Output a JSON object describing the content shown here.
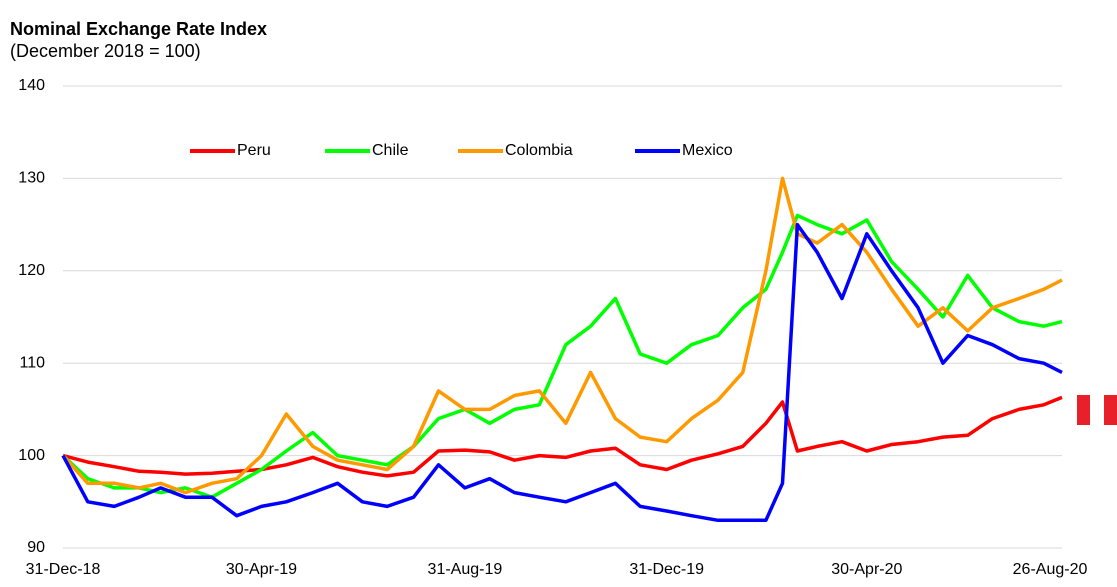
{
  "chart_data": {
    "type": "line",
    "title": "Nominal Exchange Rate Index",
    "subtitle": "(December 2018 = 100)",
    "x": [
      "31-Dec-18",
      "15-Jan-19",
      "31-Jan-19",
      "15-Feb-19",
      "28-Feb-19",
      "15-Mar-19",
      "31-Mar-19",
      "15-Apr-19",
      "30-Apr-19",
      "15-May-19",
      "31-May-19",
      "15-Jun-19",
      "30-Jun-19",
      "15-Jul-19",
      "31-Jul-19",
      "15-Aug-19",
      "31-Aug-19",
      "15-Sep-19",
      "30-Sep-19",
      "15-Oct-19",
      "31-Oct-19",
      "15-Nov-19",
      "30-Nov-19",
      "15-Dec-19",
      "31-Dec-19",
      "15-Jan-20",
      "31-Jan-20",
      "15-Feb-20",
      "29-Feb-20",
      "10-Mar-20",
      "19-Mar-20",
      "31-Mar-20",
      "15-Apr-20",
      "30-Apr-20",
      "15-May-20",
      "31-May-20",
      "15-Jun-20",
      "30-Jun-20",
      "15-Jul-20",
      "31-Jul-20",
      "15-Aug-20",
      "26-Aug-20"
    ],
    "series": [
      {
        "name": "Peru",
        "color": "#ff0000",
        "values": [
          100,
          99.3,
          98.8,
          98.3,
          98.2,
          98,
          98.1,
          98.3,
          98.5,
          99,
          99.8,
          98.8,
          98.2,
          97.8,
          98.2,
          100.5,
          100.6,
          100.4,
          99.5,
          100,
          99.8,
          100.5,
          100.8,
          99,
          98.5,
          99.5,
          100.2,
          101,
          103.5,
          105.8,
          100.5,
          101,
          101.5,
          100.5,
          101.2,
          101.5,
          102,
          102.2,
          104,
          105,
          105.5,
          106.3
        ]
      },
      {
        "name": "Chile",
        "color": "#00ff00",
        "values": [
          100,
          97.5,
          96.5,
          96.5,
          96,
          96.5,
          95.5,
          97,
          98.5,
          100.5,
          102.5,
          100,
          99.5,
          99,
          101,
          104,
          105,
          103.5,
          105,
          105.5,
          112,
          114,
          117,
          111,
          110,
          112,
          113,
          116,
          118,
          122,
          126,
          125,
          124,
          125.5,
          121,
          118,
          115,
          119.5,
          116,
          114.5,
          114,
          114.5
        ]
      },
      {
        "name": "Colombia",
        "color": "#ff9900",
        "values": [
          100,
          97,
          97,
          96.5,
          97,
          96,
          97,
          97.5,
          100,
          104.5,
          101,
          99.5,
          99,
          98.5,
          101,
          107,
          105,
          105,
          106.5,
          107,
          103.5,
          109,
          104,
          102,
          101.5,
          104,
          106,
          109,
          120,
          130,
          124,
          123,
          125,
          122,
          118,
          114,
          116,
          113.5,
          116,
          117,
          118,
          119
        ]
      },
      {
        "name": "Mexico",
        "color": "#0000ff",
        "values": [
          100,
          95,
          94.5,
          95.5,
          96.5,
          95.5,
          95.5,
          93.5,
          94.5,
          95,
          96,
          97,
          95,
          94.5,
          95.5,
          99,
          96.5,
          97.5,
          96,
          95.5,
          95,
          96,
          97,
          94.5,
          94,
          93.5,
          93,
          93,
          93,
          97,
          125,
          122,
          117,
          124,
          120,
          116,
          110,
          113,
          112,
          110.5,
          110,
          109
        ]
      }
    ],
    "xlim": [
      "31-Dec-18",
      "26-Aug-20"
    ],
    "xticks": [
      "31-Dec-18",
      "30-Apr-19",
      "31-Aug-19",
      "31-Dec-19",
      "30-Apr-20",
      "26-Aug-20"
    ],
    "ylim": [
      90,
      140
    ],
    "yticks": [
      90,
      100,
      110,
      120,
      130,
      140
    ],
    "grid": true,
    "legend": "top"
  }
}
